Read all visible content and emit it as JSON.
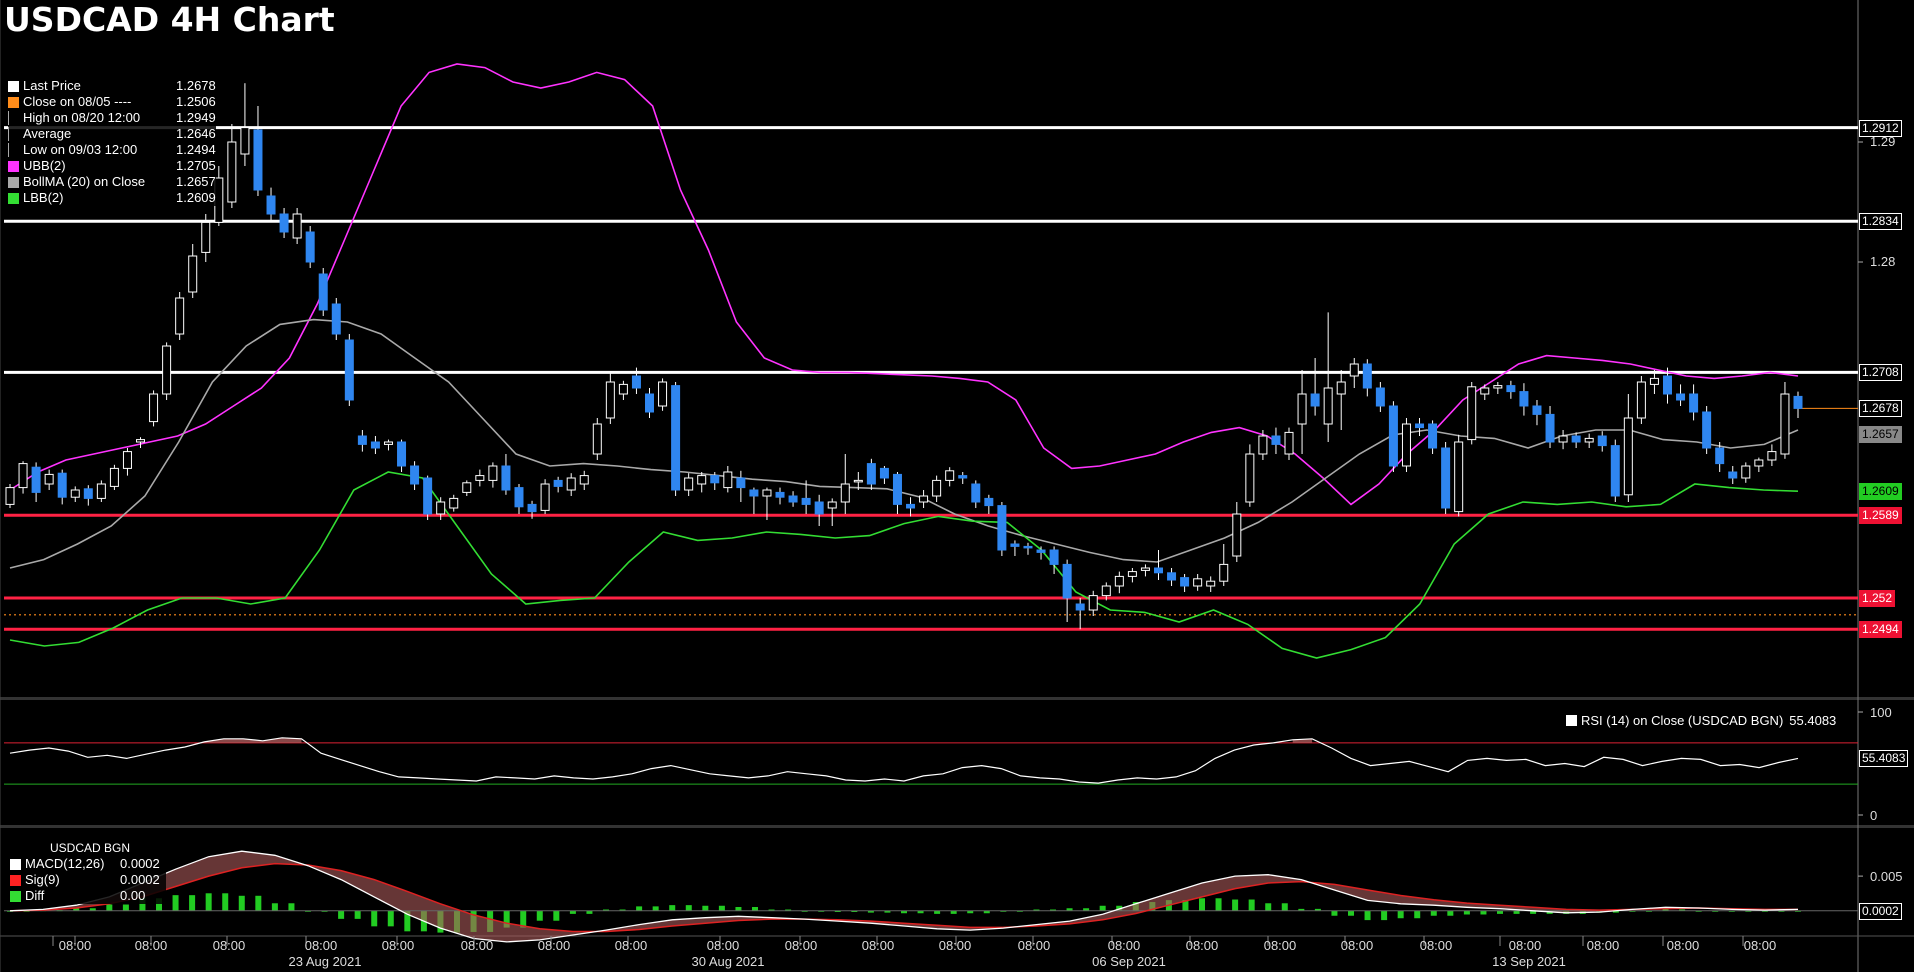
{
  "title": "USDCAD 4H Chart",
  "colors": {
    "background": "#000000",
    "bull_candle": "#ffffff",
    "bear_candle": "#2f86f0",
    "ubb": "#ff33ff",
    "bollma": "#a9a9a9",
    "lbb": "#33dd33",
    "resistance": "#ffffff",
    "support": "#ff2244",
    "close_line": "#ff8c1a"
  },
  "legend_main": [
    {
      "label": "Last Price",
      "value": "1.2678",
      "color": "#ffffff"
    },
    {
      "label": "Close on 08/05 ----",
      "value": "1.2506",
      "color": "#ff8c1a"
    },
    {
      "label": "High on 08/20 12:00",
      "value": "1.2949",
      "color": "none"
    },
    {
      "label": "Average",
      "value": "1.2646",
      "color": "none"
    },
    {
      "label": "Low on 09/03 12:00",
      "value": "1.2494",
      "color": "none"
    },
    {
      "label": "UBB(2)",
      "value": "1.2705",
      "color": "#ff33ff"
    },
    {
      "label": "BollMA (20)  on Close",
      "value": "1.2657",
      "color": "#a9a9a9"
    },
    {
      "label": "LBB(2)",
      "value": "1.2609",
      "color": "#33dd33"
    }
  ],
  "rsi_legend": {
    "label": "RSI (14)   on Close (USDCAD BGN)",
    "value": "55.4083"
  },
  "macd_legend": {
    "title": "USDCAD BGN",
    "items": [
      {
        "label": "MACD(12,26)",
        "value": "0.0002",
        "color": "#ffffff"
      },
      {
        "label": "Sig(9)",
        "value": "0.0002",
        "color": "#ff2222"
      },
      {
        "label": "Diff",
        "value": "0.00",
        "color": "#33dd33"
      }
    ]
  },
  "price_tags": [
    {
      "text": "1.2912",
      "value": 1.2912,
      "bg": "#000000",
      "fg": "#ffffff",
      "border": "#ffffff"
    },
    {
      "text": "1.2834",
      "value": 1.2834,
      "bg": "#000000",
      "fg": "#ffffff",
      "border": "#ffffff"
    },
    {
      "text": "1.2708",
      "value": 1.2708,
      "bg": "#000000",
      "fg": "#ffffff",
      "border": "#ffffff"
    },
    {
      "text": "1.2678",
      "value": 1.2678,
      "bg": "#000000",
      "fg": "#ffffff",
      "border": "#ffffff"
    },
    {
      "text": "1.2657",
      "value": 1.2657,
      "bg": "#888888",
      "fg": "#000000",
      "border": "#888888"
    },
    {
      "text": "1.2609",
      "value": 1.2609,
      "bg": "#22cc22",
      "fg": "#000000",
      "border": "#22cc22"
    },
    {
      "text": "1.2589",
      "value": 1.2589,
      "bg": "#ee1133",
      "fg": "#ffffff",
      "border": "#ee1133"
    },
    {
      "text": "1.252",
      "value": 1.252,
      "bg": "#ee1133",
      "fg": "#ffffff",
      "border": "#ee1133"
    },
    {
      "text": "1.2494",
      "value": 1.2494,
      "bg": "#ee1133",
      "fg": "#ffffff",
      "border": "#ee1133"
    }
  ],
  "rsi_tag": "55.4083",
  "macd_tag": "0.0002",
  "chart_data": {
    "type": "candlestick",
    "title": "USDCAD 4H Chart",
    "y_axis_ticks": [
      "1.29",
      "1.28"
    ],
    "ylim": [
      1.2435,
      1.2955
    ],
    "resistance_levels": [
      1.2912,
      1.2834,
      1.2708
    ],
    "support_levels": [
      1.2589,
      1.252,
      1.2494
    ],
    "close_0805": 1.2506,
    "candles": [
      [
        1.2598,
        1.2612,
        1.2595,
        1.2615
      ],
      [
        1.2612,
        1.2632,
        1.2607,
        1.2634
      ],
      [
        1.2629,
        1.2608,
        1.26,
        1.2633
      ],
      [
        1.2615,
        1.2623,
        1.261,
        1.2627
      ],
      [
        1.2624,
        1.2604,
        1.2598,
        1.2627
      ],
      [
        1.2604,
        1.261,
        1.26,
        1.2613
      ],
      [
        1.2611,
        1.2603,
        1.2597,
        1.2614
      ],
      [
        1.2603,
        1.2615,
        1.26,
        1.2618
      ],
      [
        1.2613,
        1.2628,
        1.261,
        1.2631
      ],
      [
        1.2628,
        1.2642,
        1.2622,
        1.2645
      ],
      [
        1.265,
        1.2652,
        1.2645,
        1.2654
      ],
      [
        1.2667,
        1.269,
        1.2663,
        1.2693
      ],
      [
        1.269,
        1.273,
        1.2685,
        1.2733
      ],
      [
        1.274,
        1.277,
        1.2735,
        1.2775
      ],
      [
        1.2775,
        1.2805,
        1.277,
        1.2815
      ],
      [
        1.2808,
        1.2833,
        1.28,
        1.284
      ],
      [
        1.2833,
        1.287,
        1.283,
        1.288
      ],
      [
        1.285,
        1.29,
        1.2845,
        1.2915
      ],
      [
        1.289,
        1.2912,
        1.288,
        1.2949
      ],
      [
        1.291,
        1.286,
        1.2855,
        1.293
      ],
      [
        1.2855,
        1.284,
        1.2835,
        1.2862
      ],
      [
        1.284,
        1.2825,
        1.282,
        1.2845
      ],
      [
        1.282,
        1.284,
        1.2815,
        1.2845
      ],
      [
        1.2825,
        1.28,
        1.2795,
        1.283
      ],
      [
        1.279,
        1.276,
        1.2755,
        1.2795
      ],
      [
        1.2765,
        1.274,
        1.2735,
        1.277
      ],
      [
        1.2735,
        1.2685,
        1.268,
        1.274
      ],
      [
        1.2655,
        1.2648,
        1.2642,
        1.266
      ],
      [
        1.265,
        1.2645,
        1.264,
        1.2655
      ],
      [
        1.2648,
        1.265,
        1.2643,
        1.2652
      ],
      [
        1.265,
        1.263,
        1.2625,
        1.2652
      ],
      [
        1.263,
        1.2615,
        1.261,
        1.2634
      ],
      [
        1.262,
        1.259,
        1.2585,
        1.2622
      ],
      [
        1.259,
        1.26,
        1.2585,
        1.2604
      ],
      [
        1.2595,
        1.2603,
        1.2592,
        1.2606
      ],
      [
        1.2608,
        1.2616,
        1.2605,
        1.2618
      ],
      [
        1.2618,
        1.2622,
        1.2613,
        1.2627
      ],
      [
        1.2618,
        1.263,
        1.2612,
        1.2633
      ],
      [
        1.263,
        1.261,
        1.2606,
        1.264
      ],
      [
        1.2612,
        1.2596,
        1.259,
        1.2615
      ],
      [
        1.2598,
        1.2592,
        1.2586,
        1.2601
      ],
      [
        1.2593,
        1.2615,
        1.259,
        1.2619
      ],
      [
        1.2618,
        1.2613,
        1.2608,
        1.2621
      ],
      [
        1.261,
        1.262,
        1.2605,
        1.2624
      ],
      [
        1.2615,
        1.2622,
        1.261,
        1.2626
      ],
      [
        1.264,
        1.2665,
        1.2635,
        1.267
      ],
      [
        1.267,
        1.27,
        1.2665,
        1.2708
      ],
      [
        1.269,
        1.2698,
        1.2685,
        1.2701
      ],
      [
        1.2705,
        1.2695,
        1.269,
        1.2712
      ],
      [
        1.269,
        1.2675,
        1.267,
        1.2695
      ],
      [
        1.268,
        1.27,
        1.2676,
        1.2703
      ],
      [
        1.2697,
        1.261,
        1.2605,
        1.27
      ],
      [
        1.261,
        1.262,
        1.2605,
        1.2624
      ],
      [
        1.2615,
        1.2622,
        1.2608,
        1.2625
      ],
      [
        1.2622,
        1.2616,
        1.261,
        1.2625
      ],
      [
        1.2612,
        1.2625,
        1.2608,
        1.263
      ],
      [
        1.262,
        1.2612,
        1.26,
        1.2626
      ],
      [
        1.261,
        1.2605,
        1.259,
        1.2612
      ],
      [
        1.2605,
        1.261,
        1.2585,
        1.2612
      ],
      [
        1.2608,
        1.2604,
        1.2598,
        1.2612
      ],
      [
        1.2605,
        1.26,
        1.2596,
        1.2609
      ],
      [
        1.2603,
        1.2598,
        1.259,
        1.2618
      ],
      [
        1.26,
        1.259,
        1.258,
        1.2606
      ],
      [
        1.2595,
        1.26,
        1.258,
        1.2603
      ],
      [
        1.26,
        1.2615,
        1.259,
        1.264
      ],
      [
        1.2618,
        1.2618,
        1.261,
        1.2625
      ],
      [
        1.2632,
        1.2615,
        1.261,
        1.2636
      ],
      [
        1.2628,
        1.262,
        1.2615,
        1.263
      ],
      [
        1.2623,
        1.2598,
        1.259,
        1.2625
      ],
      [
        1.2598,
        1.2595,
        1.2588,
        1.2604
      ],
      [
        1.26,
        1.2605,
        1.2595,
        1.261
      ],
      [
        1.2605,
        1.2618,
        1.26,
        1.2622
      ],
      [
        1.2618,
        1.2626,
        1.2613,
        1.2629
      ],
      [
        1.2622,
        1.262,
        1.2615,
        1.2625
      ],
      [
        1.2615,
        1.26,
        1.2595,
        1.2618
      ],
      [
        1.2603,
        1.2597,
        1.259,
        1.2606
      ],
      [
        1.2597,
        1.256,
        1.2555,
        1.26
      ],
      [
        1.2565,
        1.2563,
        1.2555,
        1.2568
      ],
      [
        1.2563,
        1.2562,
        1.2556,
        1.2566
      ],
      [
        1.256,
        1.2558,
        1.2552,
        1.2563
      ],
      [
        1.256,
        1.2548,
        1.254,
        1.2563
      ],
      [
        1.2548,
        1.252,
        1.25,
        1.2552
      ],
      [
        1.2515,
        1.251,
        1.2494,
        1.252
      ],
      [
        1.251,
        1.2522,
        1.2505,
        1.2526
      ],
      [
        1.2522,
        1.253,
        1.2518,
        1.2533
      ],
      [
        1.253,
        1.2538,
        1.2524,
        1.2542
      ],
      [
        1.2538,
        1.2542,
        1.2533,
        1.2545
      ],
      [
        1.2543,
        1.2545,
        1.2538,
        1.2548
      ],
      [
        1.2545,
        1.2541,
        1.2535,
        1.256
      ],
      [
        1.2541,
        1.2535,
        1.253,
        1.2545
      ],
      [
        1.2537,
        1.253,
        1.2525,
        1.254
      ],
      [
        1.253,
        1.2536,
        1.2526,
        1.254
      ],
      [
        1.253,
        1.2534,
        1.2525,
        1.2538
      ],
      [
        1.2534,
        1.2548,
        1.253,
        1.2565
      ],
      [
        1.2555,
        1.259,
        1.255,
        1.26
      ],
      [
        1.26,
        1.264,
        1.2596,
        1.2648
      ],
      [
        1.264,
        1.2655,
        1.2635,
        1.266
      ],
      [
        1.2655,
        1.2648,
        1.264,
        1.2662
      ],
      [
        1.264,
        1.2658,
        1.2635,
        1.2662
      ],
      [
        1.2665,
        1.269,
        1.264,
        1.271
      ],
      [
        1.269,
        1.268,
        1.2672,
        1.272
      ],
      [
        1.2665,
        1.2695,
        1.265,
        1.2758
      ],
      [
        1.269,
        1.27,
        1.266,
        1.271
      ],
      [
        1.2705,
        1.2715,
        1.2695,
        1.272
      ],
      [
        1.2715,
        1.2695,
        1.2688,
        1.2719
      ],
      [
        1.2695,
        1.268,
        1.2675,
        1.27
      ],
      [
        1.268,
        1.263,
        1.2625,
        1.2684
      ],
      [
        1.263,
        1.2665,
        1.2625,
        1.267
      ],
      [
        1.2665,
        1.2662,
        1.2655,
        1.267
      ],
      [
        1.2665,
        1.2645,
        1.264,
        1.2668
      ],
      [
        1.2645,
        1.2595,
        1.259,
        1.265
      ],
      [
        1.2592,
        1.265,
        1.2588,
        1.2656
      ],
      [
        1.2652,
        1.2696,
        1.2648,
        1.27
      ],
      [
        1.269,
        1.2695,
        1.2685,
        1.2698
      ],
      [
        1.2695,
        1.2697,
        1.269,
        1.27
      ],
      [
        1.2697,
        1.2692,
        1.2686,
        1.2701
      ],
      [
        1.2692,
        1.268,
        1.2672,
        1.2699
      ],
      [
        1.268,
        1.2673,
        1.2664,
        1.2685
      ],
      [
        1.2673,
        1.265,
        1.2645,
        1.268
      ],
      [
        1.265,
        1.2655,
        1.2644,
        1.266
      ],
      [
        1.2655,
        1.265,
        1.2645,
        1.2658
      ],
      [
        1.265,
        1.2653,
        1.2645,
        1.2657
      ],
      [
        1.2655,
        1.2647,
        1.2642,
        1.2659
      ],
      [
        1.2647,
        1.2605,
        1.26,
        1.2652
      ],
      [
        1.2606,
        1.267,
        1.26,
        1.269
      ],
      [
        1.267,
        1.27,
        1.2665,
        1.2705
      ],
      [
        1.2698,
        1.2703,
        1.269,
        1.271
      ],
      [
        1.2705,
        1.269,
        1.2682,
        1.2712
      ],
      [
        1.269,
        1.2685,
        1.268,
        1.2698
      ],
      [
        1.269,
        1.2675,
        1.2668,
        1.2698
      ],
      [
        1.2675,
        1.2645,
        1.264,
        1.268
      ],
      [
        1.2645,
        1.2632,
        1.2625,
        1.265
      ],
      [
        1.2625,
        1.262,
        1.2615,
        1.263
      ],
      [
        1.262,
        1.263,
        1.2616,
        1.2633
      ],
      [
        1.263,
        1.2635,
        1.2625,
        1.2637
      ],
      [
        1.2635,
        1.2642,
        1.263,
        1.2648
      ],
      [
        1.264,
        1.269,
        1.2636,
        1.27
      ],
      [
        1.2688,
        1.2678,
        1.267,
        1.2692
      ]
    ],
    "ubb": [
      1.261,
      1.2625,
      1.2635,
      1.264,
      1.2645,
      1.265,
      1.2655,
      1.2665,
      1.268,
      1.2695,
      1.272,
      1.2765,
      1.282,
      1.2875,
      1.293,
      1.2958,
      1.2965,
      1.2962,
      1.295,
      1.2945,
      1.295,
      1.2958,
      1.2952,
      1.293,
      1.286,
      1.281,
      1.275,
      1.272,
      1.271,
      1.2708,
      1.2708,
      1.2707,
      1.2706,
      1.2705,
      1.2703,
      1.27,
      1.2685,
      1.2645,
      1.2628,
      1.263,
      1.2635,
      1.264,
      1.265,
      1.2658,
      1.2662,
      1.2655,
      1.264,
      1.262,
      1.2598,
      1.2615,
      1.264,
      1.266,
      1.2685,
      1.27,
      1.2715,
      1.2722,
      1.272,
      1.2718,
      1.2715,
      1.271,
      1.2705,
      1.2703,
      1.2705,
      1.2708,
      1.2705
    ],
    "bollma": [
      1.2545,
      1.2552,
      1.2565,
      1.258,
      1.2605,
      1.265,
      1.27,
      1.273,
      1.2748,
      1.2752,
      1.275,
      1.274,
      1.272,
      1.27,
      1.267,
      1.264,
      1.263,
      1.2632,
      1.263,
      1.2627,
      1.2625,
      1.2622,
      1.2619,
      1.2617,
      1.2613,
      1.2612,
      1.2611,
      1.2604,
      1.259,
      1.258,
      1.2572,
      1.2565,
      1.2558,
      1.2552,
      1.255,
      1.256,
      1.257,
      1.2583,
      1.26,
      1.262,
      1.264,
      1.2656,
      1.266,
      1.2655,
      1.2653,
      1.2645,
      1.2655,
      1.266,
      1.266,
      1.2652,
      1.265,
      1.2645,
      1.2648,
      1.266
    ],
    "lbb": [
      1.2485,
      1.248,
      1.2483,
      1.2495,
      1.251,
      1.252,
      1.252,
      1.2515,
      1.252,
      1.256,
      1.261,
      1.2625,
      1.262,
      1.258,
      1.254,
      1.2515,
      1.2518,
      1.252,
      1.255,
      1.2575,
      1.2568,
      1.257,
      1.2575,
      1.2573,
      1.257,
      1.2572,
      1.2582,
      1.2588,
      1.2584,
      1.2583,
      1.256,
      1.2525,
      1.251,
      1.2508,
      1.25,
      1.251,
      1.2498,
      1.2478,
      1.247,
      1.2477,
      1.2487,
      1.2515,
      1.2565,
      1.259,
      1.26,
      1.2598,
      1.26,
      1.2596,
      1.2598,
      1.2615,
      1.2612,
      1.261,
      1.2609
    ]
  },
  "rsi_chart": {
    "type": "line",
    "yticks": [
      "100",
      "0"
    ],
    "ylim": [
      0,
      100
    ],
    "overbought": 70,
    "oversold": 30,
    "values": [
      60,
      63,
      65,
      62,
      56,
      58,
      55,
      59,
      63,
      66,
      71,
      74,
      74,
      72,
      75,
      74,
      60,
      54,
      48,
      42,
      37,
      36,
      35,
      34,
      33,
      37,
      36,
      35,
      38,
      36,
      35,
      37,
      40,
      45,
      48,
      44,
      40,
      38,
      36,
      38,
      42,
      40,
      38,
      34,
      33,
      35,
      33,
      38,
      40,
      46,
      48,
      45,
      38,
      36,
      35,
      32,
      31,
      34,
      36,
      35,
      37,
      43,
      55,
      63,
      68,
      70,
      73,
      74,
      65,
      55,
      48,
      50,
      52,
      47,
      42,
      53,
      55,
      53,
      54,
      48,
      50,
      47,
      56,
      54,
      48,
      52,
      55,
      54,
      48,
      49,
      46,
      51,
      55
    ]
  },
  "macd_chart": {
    "type": "line",
    "yticks": [
      "0.005"
    ],
    "ylim": [
      -0.0035,
      0.0105
    ],
    "macd": [
      0.0,
      0.0002,
      0.0008,
      0.002,
      0.004,
      0.006,
      0.0078,
      0.0086,
      0.008,
      0.0065,
      0.0045,
      0.002,
      -0.0005,
      -0.0025,
      -0.004,
      -0.0045,
      -0.0042,
      -0.0035,
      -0.0028,
      -0.002,
      -0.0013,
      -0.001,
      -0.0008,
      -0.001,
      -0.0012,
      -0.0015,
      -0.0018,
      -0.0022,
      -0.0026,
      -0.0028,
      -0.0025,
      -0.002,
      -0.0015,
      -0.0005,
      0.001,
      0.0025,
      0.004,
      0.005,
      0.0052,
      0.0045,
      0.003,
      0.0015,
      0.001,
      0.0008,
      0.0005,
      0.0003,
      0.0,
      -0.0003,
      -0.0002,
      0.0002,
      0.0005,
      0.0004,
      0.0002,
      0.0001,
      0.0002
    ],
    "signal": [
      0.0,
      0.0001,
      0.0004,
      0.001,
      0.002,
      0.0035,
      0.005,
      0.0062,
      0.0068,
      0.0066,
      0.0058,
      0.0045,
      0.0028,
      0.001,
      -0.0006,
      -0.0018,
      -0.0026,
      -0.003,
      -0.003,
      -0.0027,
      -0.0022,
      -0.0018,
      -0.0014,
      -0.0012,
      -0.0012,
      -0.0013,
      -0.0015,
      -0.0018,
      -0.0021,
      -0.0024,
      -0.0024,
      -0.0022,
      -0.0019,
      -0.0013,
      -0.0004,
      0.0008,
      0.002,
      0.0032,
      0.004,
      0.0042,
      0.0038,
      0.003,
      0.0022,
      0.0016,
      0.0011,
      0.0008,
      0.0005,
      0.0002,
      0.0001,
      0.0002,
      0.0003,
      0.0004,
      0.0003,
      0.0002,
      0.0002
    ]
  },
  "x_axis": {
    "ticks": [
      "08:00",
      "08:00",
      "08:00",
      "08:00",
      "08:00",
      "08:00",
      "08:00",
      "08:00",
      "08:00",
      "08:00",
      "08:00",
      "08:00",
      "08:00",
      "08:00",
      "08:00",
      "08:00",
      "08:00",
      "08:00",
      "08:00",
      "08:00",
      "08:00",
      "08:00",
      "08:00"
    ],
    "dates": [
      "23 Aug 2021",
      "30 Aug 2021",
      "06 Sep 2021",
      "13 Sep 2021"
    ]
  }
}
